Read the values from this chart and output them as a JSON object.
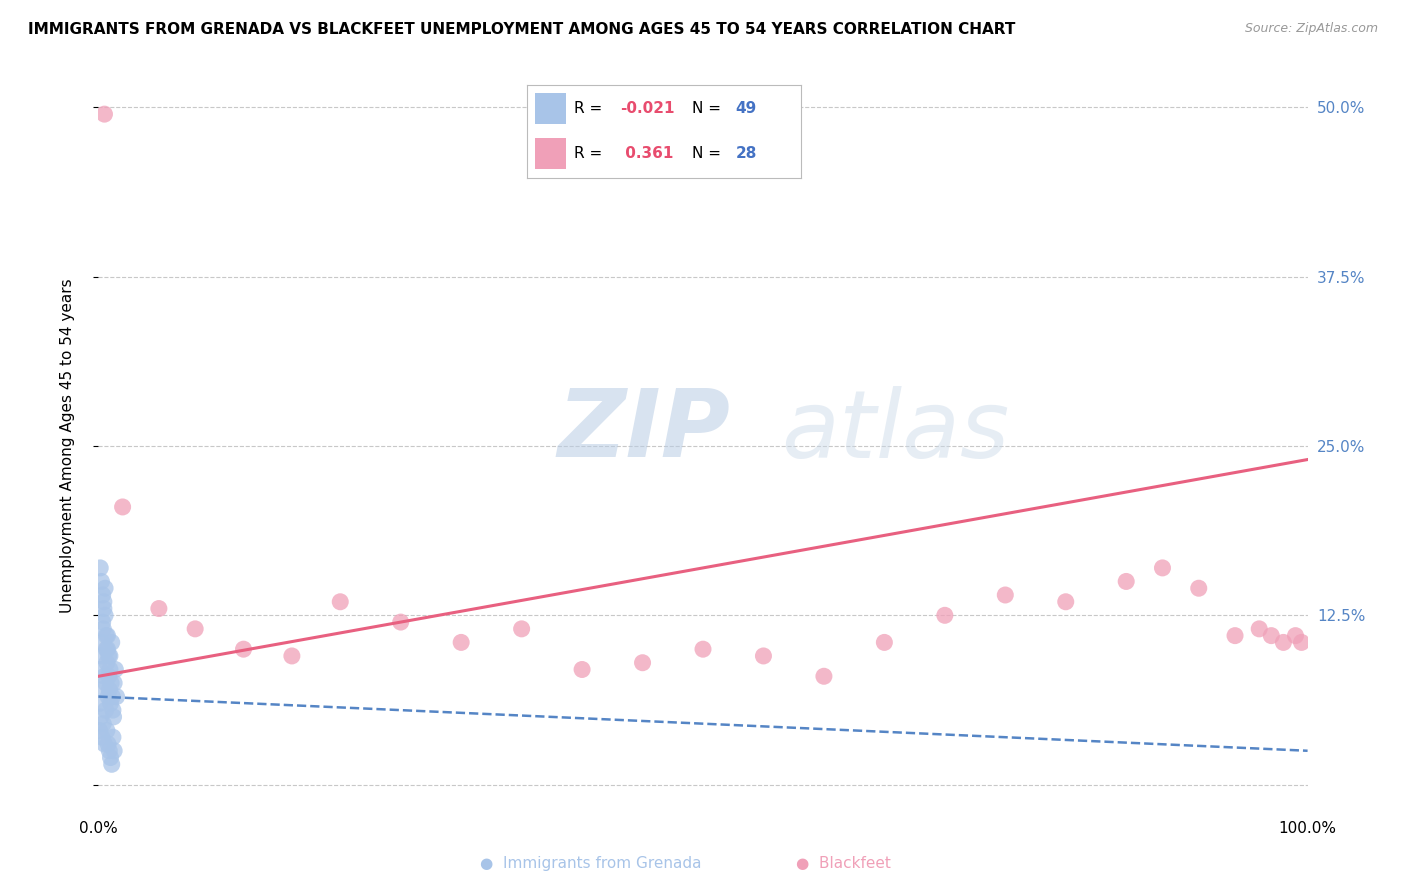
{
  "title": "IMMIGRANTS FROM GRENADA VS BLACKFEET UNEMPLOYMENT AMONG AGES 45 TO 54 YEARS CORRELATION CHART",
  "source": "Source: ZipAtlas.com",
  "ylabel": "Unemployment Among Ages 45 to 54 years",
  "xlim": [
    0,
    100
  ],
  "ylim": [
    -2,
    52
  ],
  "yticks": [
    0,
    12.5,
    25.0,
    37.5,
    50.0
  ],
  "xticks": [
    0,
    100
  ],
  "xticklabels": [
    "0.0%",
    "100.0%"
  ],
  "yticklabels": [
    "",
    "12.5%",
    "25.0%",
    "37.5%",
    "50.0%"
  ],
  "r_blue": -0.021,
  "n_blue": 49,
  "r_pink": 0.361,
  "n_pink": 28,
  "blue_color": "#a8c4e8",
  "pink_color": "#f0a0b8",
  "blue_line_color": "#5585c5",
  "pink_line_color": "#e86080",
  "legend_label_blue": "Immigrants from Grenada",
  "legend_label_pink": "Blackfeet",
  "watermark_zip": "ZIP",
  "watermark_atlas": "atlas",
  "blue_scatter_x": [
    0.1,
    0.15,
    0.2,
    0.25,
    0.3,
    0.35,
    0.4,
    0.45,
    0.5,
    0.55,
    0.6,
    0.65,
    0.7,
    0.75,
    0.8,
    0.85,
    0.9,
    0.95,
    1.0,
    1.1,
    1.2,
    1.3,
    1.4,
    1.5,
    0.1,
    0.2,
    0.3,
    0.4,
    0.5,
    0.6,
    0.7,
    0.8,
    0.9,
    1.0,
    1.1,
    1.2,
    1.3,
    0.15,
    0.25,
    0.35,
    0.45,
    0.55,
    0.65,
    0.75,
    0.85,
    0.95,
    1.05,
    1.15,
    1.25
  ],
  "blue_scatter_y": [
    6.0,
    8.5,
    7.0,
    9.5,
    10.5,
    12.0,
    11.5,
    13.0,
    8.0,
    14.5,
    7.5,
    10.0,
    9.0,
    11.0,
    6.5,
    8.0,
    7.0,
    9.5,
    6.0,
    10.5,
    5.5,
    7.5,
    8.5,
    6.5,
    4.0,
    5.0,
    3.5,
    4.5,
    3.0,
    5.5,
    4.0,
    3.0,
    2.5,
    2.0,
    1.5,
    3.5,
    2.5,
    16.0,
    15.0,
    14.0,
    13.5,
    12.5,
    11.0,
    10.0,
    9.5,
    8.5,
    7.5,
    6.5,
    5.0
  ],
  "pink_scatter_x": [
    0.5,
    2.0,
    5.0,
    8.0,
    12.0,
    16.0,
    20.0,
    25.0,
    30.0,
    35.0,
    40.0,
    45.0,
    50.0,
    55.0,
    60.0,
    65.0,
    70.0,
    75.0,
    80.0,
    85.0,
    88.0,
    91.0,
    94.0,
    96.0,
    97.0,
    98.0,
    99.0,
    99.5
  ],
  "pink_scatter_y": [
    49.5,
    20.5,
    13.0,
    11.5,
    10.0,
    9.5,
    13.5,
    12.0,
    10.5,
    11.5,
    8.5,
    9.0,
    10.0,
    9.5,
    8.0,
    10.5,
    12.5,
    14.0,
    13.5,
    15.0,
    16.0,
    14.5,
    11.0,
    11.5,
    11.0,
    10.5,
    11.0,
    10.5
  ],
  "pink_line_start_y": 8.0,
  "pink_line_end_y": 24.0,
  "blue_line_start_y": 6.5,
  "blue_line_end_y": 2.5,
  "grid_color": "#c8c8c8",
  "background_color": "#ffffff"
}
